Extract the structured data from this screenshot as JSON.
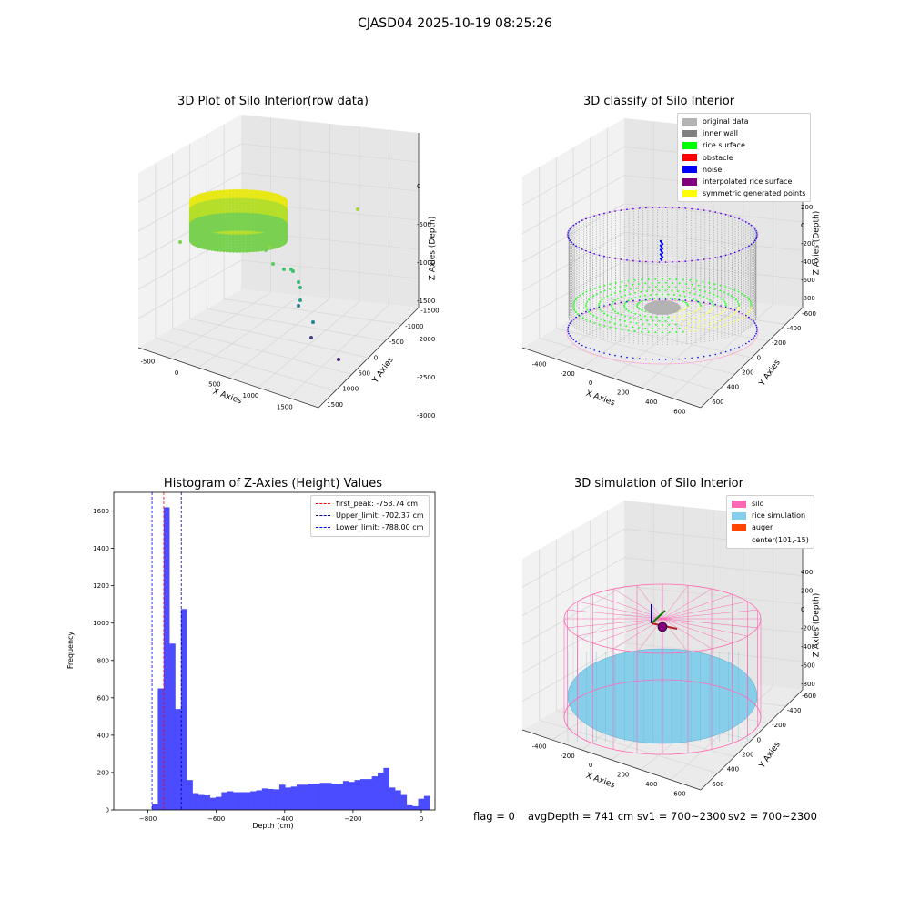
{
  "suptitle": "CJASD04 2025-10-19 08:25:26",
  "panels": {
    "p1": {
      "title": "3D Plot of Silo Interior(row data)",
      "xlabel": "X Axies",
      "ylabel": "Y Axies",
      "zlabel": "Z Axies (Depth)",
      "xticks": [
        "-500",
        "0",
        "500",
        "1000",
        "1500"
      ],
      "yticks": [
        "-1500",
        "-1000",
        "-500",
        "0",
        "500",
        "1000",
        "1500"
      ],
      "zticks": [
        "0",
        "-500",
        "-1000",
        "-1500",
        "-2000",
        "-2500",
        "-3000"
      ]
    },
    "p2": {
      "title": "3D classify of Silo Interior",
      "xlabel": "X Axies",
      "ylabel": "Y Axies",
      "zlabel": "Z Axies (Depth)",
      "xticks": [
        "-400",
        "-200",
        "0",
        "200",
        "400",
        "600"
      ],
      "yticks": [
        "-600",
        "-400",
        "-200",
        "0",
        "200",
        "400",
        "600"
      ],
      "zticks": [
        "200",
        "0",
        "-200",
        "-400",
        "-600",
        "-800"
      ],
      "legend": [
        {
          "label": "original data",
          "color": "#b3b3b3"
        },
        {
          "label": "inner wall",
          "color": "#808080"
        },
        {
          "label": "rice surface",
          "color": "#00ff00"
        },
        {
          "label": "obstacle",
          "color": "#ff0000"
        },
        {
          "label": "noise",
          "color": "#0000ff"
        },
        {
          "label": "interpolated rice surface",
          "color": "#800080"
        },
        {
          "label": "symmetric generated points",
          "color": "#ffff00"
        }
      ]
    },
    "p4": {
      "title": "3D simulation of Silo Interior",
      "xlabel": "X Axies",
      "ylabel": "Y Axies",
      "zlabel": "Z Axies (Depth)",
      "xticks": [
        "-400",
        "-200",
        "0",
        "200",
        "400",
        "600"
      ],
      "yticks": [
        "-600",
        "-400",
        "-200",
        "0",
        "200",
        "400",
        "600"
      ],
      "zticks": [
        "400",
        "200",
        "0",
        "-200",
        "-400",
        "-600",
        "-800"
      ],
      "legend": [
        {
          "label": "silo",
          "color": "#ff69b4"
        },
        {
          "label": "rice simulation",
          "color": "#87ceeb"
        },
        {
          "label": "auger",
          "color": "#ff4500"
        },
        {
          "label": "center(101,-15)",
          "color": ""
        }
      ]
    }
  },
  "chart_data": {
    "type": "bar",
    "title": "Histogram of Z-Axies (Height) Values",
    "xlabel": "Depth (cm)",
    "ylabel": "Frequency",
    "xlim": [
      -900,
      40
    ],
    "ylim": [
      0,
      1700
    ],
    "xticks": [
      -800,
      -600,
      -400,
      -200,
      0
    ],
    "yticks": [
      0,
      200,
      400,
      600,
      800,
      1000,
      1200,
      1400,
      1600
    ],
    "bin_start": -788,
    "bin_width": 16.93,
    "values": [
      30,
      650,
      1620,
      890,
      540,
      1075,
      160,
      90,
      80,
      78,
      65,
      70,
      95,
      100,
      95,
      95,
      95,
      100,
      105,
      115,
      112,
      110,
      135,
      120,
      125,
      135,
      135,
      140,
      140,
      145,
      145,
      140,
      138,
      155,
      150,
      160,
      165,
      165,
      180,
      200,
      225,
      120,
      105,
      80,
      25,
      20,
      60,
      75
    ],
    "vlines": [
      {
        "name": "first_peak: -753.74 cm",
        "x": -753.74,
        "color": "#ff0000"
      },
      {
        "name": "Upper_limit: -702.37 cm",
        "x": -702.37,
        "color": "#00008b"
      },
      {
        "name": "Lower_limit: -788.00 cm",
        "x": -788.0,
        "color": "#0000ff"
      }
    ],
    "bar_color": "#4b4bff"
  },
  "status": {
    "flag": "flag = 0",
    "avg": "avgDepth = 741 cm",
    "sv1": "sv1 = 700~2300",
    "sv2": "sv2 = 700~2300"
  }
}
